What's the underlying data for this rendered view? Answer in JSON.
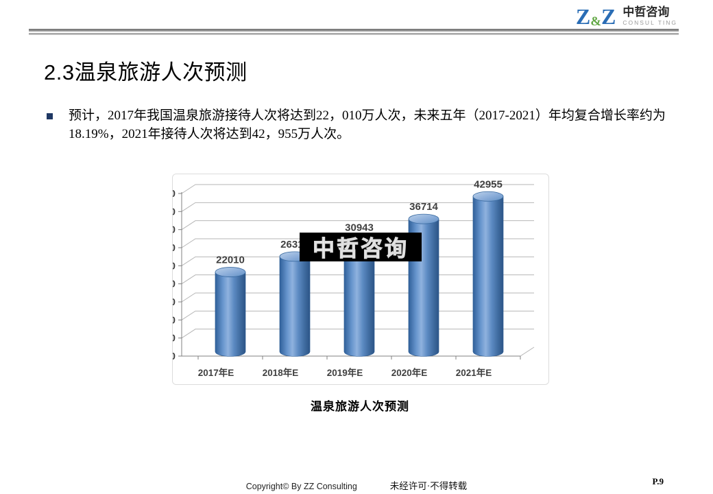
{
  "header": {
    "logo_z1": "Z",
    "logo_amp": "&",
    "logo_z2": "Z",
    "logo_cn": "中哲咨询",
    "logo_en": "CONSUL TING",
    "logo_blue": "#2a6db5",
    "logo_green": "#61a744"
  },
  "slide": {
    "title": "2.3温泉旅游人次预测",
    "bullet_text": "预计，2017年我国温泉旅游接待人次将达到22，010万人次，未来五年（2017-2021）年均复合增长率约为18.19%，2021年接待人次将达到42，955万人次。",
    "caption": "温泉旅游人次预测",
    "watermark": "中哲咨询"
  },
  "chart_data": {
    "type": "bar",
    "style": "3d-cylinder",
    "title": "温泉旅游人次预测",
    "categories": [
      "2017年E",
      "2018年E",
      "2019年E",
      "2020年E",
      "2021年E"
    ],
    "values": [
      22010,
      26319,
      30943,
      36714,
      42955
    ],
    "xlabel": "",
    "ylabel": "",
    "ylim": [
      0,
      45000
    ],
    "ytick_step": 5000,
    "grid": true,
    "legend": "none",
    "bar_color": "#4f81bd",
    "label_color": "#404040"
  },
  "footer": {
    "copyright": "Copyright© By ZZ Consulting",
    "notice": "未经许可·不得转载",
    "page": "P.9"
  }
}
